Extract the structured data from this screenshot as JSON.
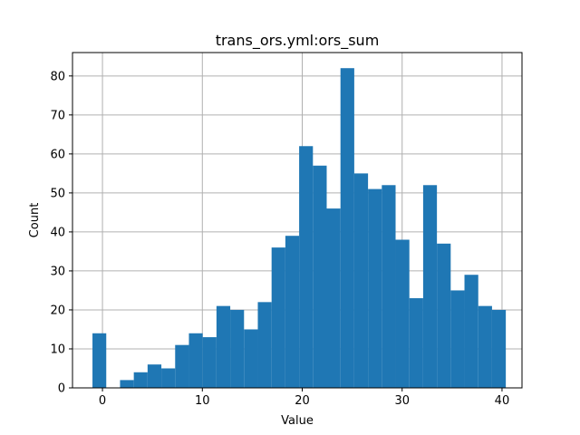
{
  "chart_data": {
    "type": "bar",
    "subtype": "histogram",
    "title": "trans_ors.yml:ors_sum",
    "xlabel": "Value",
    "ylabel": "Count",
    "xlim": [
      -3.0,
      42.0
    ],
    "ylim": [
      0,
      86
    ],
    "xticks": [
      0,
      10,
      20,
      30,
      40
    ],
    "yticks": [
      0,
      10,
      20,
      30,
      40,
      50,
      60,
      70,
      80
    ],
    "grid": true,
    "bar_color": "#1f77b4",
    "bin_width": 1.379,
    "bins": [
      {
        "x0": -1.0,
        "x1": 0.379,
        "count": 14
      },
      {
        "x0": 0.379,
        "x1": 1.759,
        "count": 0
      },
      {
        "x0": 1.759,
        "x1": 3.138,
        "count": 2
      },
      {
        "x0": 3.138,
        "x1": 4.517,
        "count": 4
      },
      {
        "x0": 4.517,
        "x1": 5.897,
        "count": 6
      },
      {
        "x0": 5.897,
        "x1": 7.276,
        "count": 5
      },
      {
        "x0": 7.276,
        "x1": 8.655,
        "count": 11
      },
      {
        "x0": 8.655,
        "x1": 10.034,
        "count": 14
      },
      {
        "x0": 10.034,
        "x1": 11.414,
        "count": 13
      },
      {
        "x0": 11.414,
        "x1": 12.793,
        "count": 21
      },
      {
        "x0": 12.793,
        "x1": 14.172,
        "count": 20
      },
      {
        "x0": 14.172,
        "x1": 15.552,
        "count": 15
      },
      {
        "x0": 15.552,
        "x1": 16.931,
        "count": 22
      },
      {
        "x0": 16.931,
        "x1": 18.31,
        "count": 36
      },
      {
        "x0": 18.31,
        "x1": 19.69,
        "count": 39
      },
      {
        "x0": 19.69,
        "x1": 21.069,
        "count": 62
      },
      {
        "x0": 21.069,
        "x1": 22.448,
        "count": 57
      },
      {
        "x0": 22.448,
        "x1": 23.828,
        "count": 46
      },
      {
        "x0": 23.828,
        "x1": 25.207,
        "count": 82
      },
      {
        "x0": 25.207,
        "x1": 26.586,
        "count": 55
      },
      {
        "x0": 26.586,
        "x1": 27.966,
        "count": 51
      },
      {
        "x0": 27.966,
        "x1": 29.345,
        "count": 52
      },
      {
        "x0": 29.345,
        "x1": 30.724,
        "count": 38
      },
      {
        "x0": 30.724,
        "x1": 32.103,
        "count": 23
      },
      {
        "x0": 32.103,
        "x1": 33.483,
        "count": 52
      },
      {
        "x0": 33.483,
        "x1": 34.862,
        "count": 37
      },
      {
        "x0": 34.862,
        "x1": 36.241,
        "count": 25
      },
      {
        "x0": 36.241,
        "x1": 37.621,
        "count": 29
      },
      {
        "x0": 37.621,
        "x1": 39.0,
        "count": 21
      },
      {
        "x0": 39.0,
        "x1": 40.379,
        "count": 20
      }
    ]
  }
}
